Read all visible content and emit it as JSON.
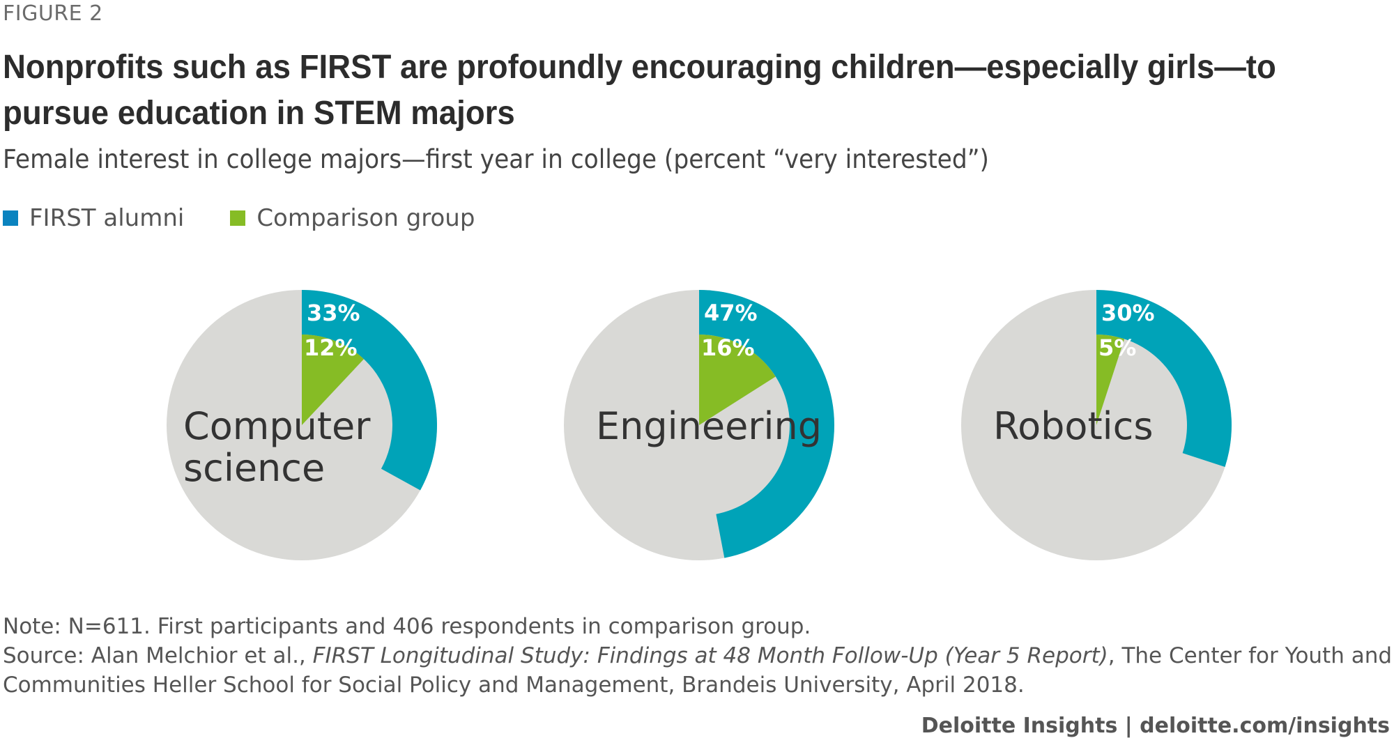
{
  "header": {
    "figure_label": "FIGURE 2",
    "title": "Nonprofits such as FIRST are profoundly encouraging children—especially girls—to pursue education in STEM majors",
    "subtitle": "Female interest in college majors—first year in college (percent “very interested”)"
  },
  "legend": [
    {
      "label": "FIRST alumni",
      "color": "#0a83bf"
    },
    {
      "label": "Comparison group",
      "color": "#86bc25"
    }
  ],
  "chart_data": [
    {
      "type": "pie",
      "category": "Computer science",
      "category_lines": [
        "Computer",
        "science"
      ],
      "series": [
        {
          "name": "FIRST alumni",
          "value": 33,
          "label": "33%"
        },
        {
          "name": "Comparison group",
          "value": 12,
          "label": "12%"
        }
      ]
    },
    {
      "type": "pie",
      "category": "Engineering",
      "category_lines": [
        "Engineering"
      ],
      "series": [
        {
          "name": "FIRST alumni",
          "value": 47,
          "label": "47%"
        },
        {
          "name": "Comparison group",
          "value": 16,
          "label": "16%"
        }
      ]
    },
    {
      "type": "pie",
      "category": "Robotics",
      "category_lines": [
        "Robotics"
      ],
      "series": [
        {
          "name": "FIRST alumni",
          "value": 30,
          "label": "30%"
        },
        {
          "name": "Comparison group",
          "value": 5,
          "label": "5%"
        }
      ]
    }
  ],
  "colors": {
    "first_alumni_ring": "#00a3b8",
    "comparison_wedge": "#86bc25",
    "background_disc": "#d9d9d6"
  },
  "footer": {
    "note": "Note: N=611. First participants and 406 respondents in comparison group.",
    "source_prefix": "Source: Alan Melchior et al., ",
    "source_title": "FIRST Longitudinal Study: Findings at 48 Month Follow-Up (Year 5 Report)",
    "source_suffix": ", The Center for Youth and",
    "source_line2": "Communities Heller School for Social Policy and Management, Brandeis University, April 2018.",
    "brand": "Deloitte Insights | deloitte.com/insights"
  }
}
